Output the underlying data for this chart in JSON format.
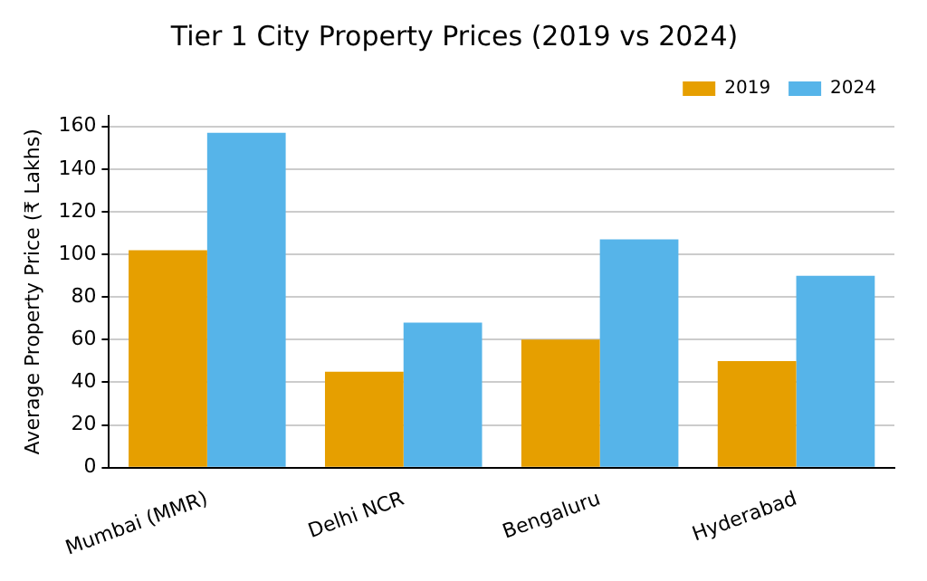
{
  "chart_data": {
    "type": "bar",
    "title": "Tier 1 City Property Prices (2019 vs 2024)",
    "ylabel": "Average Property Price (₹ Lakhs)",
    "categories": [
      "Mumbai (MMR)",
      "Delhi NCR",
      "Bengaluru",
      "Hyderabad"
    ],
    "series": [
      {
        "name": "2019",
        "color": "#e69f00",
        "values": [
          102,
          45,
          60,
          50
        ]
      },
      {
        "name": "2024",
        "color": "#56b4e9",
        "values": [
          157,
          68,
          107,
          90
        ]
      }
    ],
    "ylim": [
      0,
      165
    ],
    "yticks": [
      0,
      20,
      40,
      60,
      80,
      100,
      120,
      140,
      160
    ],
    "grid": "y",
    "legend": "top right"
  }
}
